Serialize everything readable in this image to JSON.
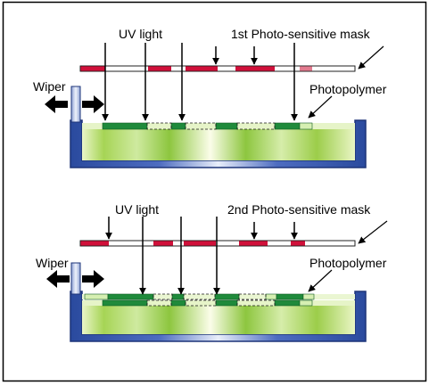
{
  "panels": [
    {
      "uv_label": "UV light",
      "mask_label": "1st Photo-sensitive mask",
      "wiper_label": "Wiper",
      "polymer_label": "Photopolymer"
    },
    {
      "uv_label": "UV light",
      "mask_label": "2nd Photo-sensitive mask",
      "wiper_label": "Wiper",
      "polymer_label": "Photopolymer"
    }
  ],
  "colors": {
    "mask_opaque": "#d0103a",
    "mask_light": "#e27a8e",
    "mask_clear": "#ffffff",
    "tank": "#2e4fa3",
    "polymer_cured": "#1f8a3b",
    "polymer_uncured": "#d6efb2",
    "resin_light": "#f2f9da",
    "resin_dark": "#8cc63f",
    "wiper": "#b9c7e8"
  }
}
